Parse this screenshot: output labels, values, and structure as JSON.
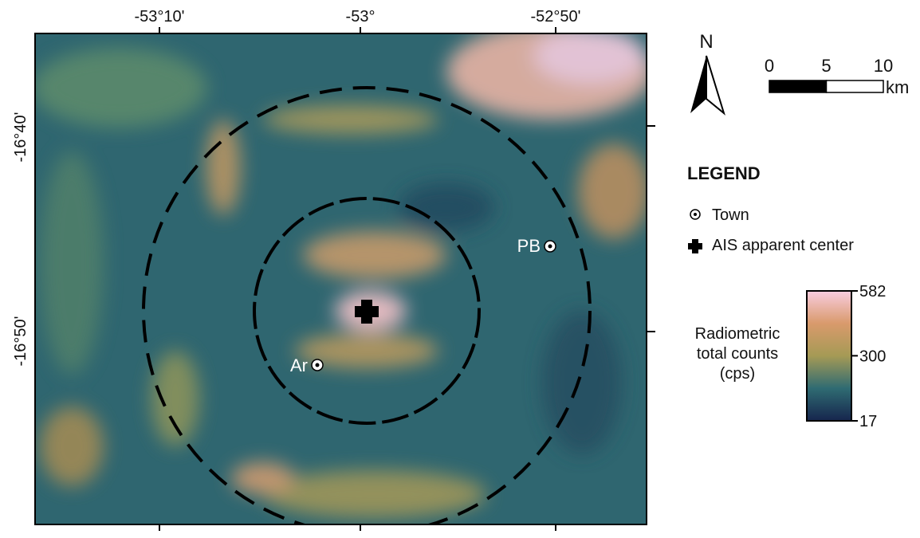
{
  "map": {
    "top_axis_labels": [
      "-53°10'",
      "-53°",
      "-52°50'"
    ],
    "left_axis_labels": [
      "-16°40'",
      "-16°50'"
    ],
    "north_label": "N",
    "scale_bar": {
      "ticks": [
        0,
        5,
        10
      ],
      "unit": "km"
    },
    "towns": [
      {
        "label": "PB"
      },
      {
        "label": "Ar"
      }
    ],
    "legend": {
      "title": "LEGEND",
      "items": [
        "Town",
        "AIS apparent center"
      ]
    },
    "colorbar": {
      "title": [
        "Radiometric",
        "total counts",
        "(cps)"
      ],
      "range": [
        17,
        582
      ],
      "ticks": [
        582,
        300,
        17
      ]
    }
  }
}
